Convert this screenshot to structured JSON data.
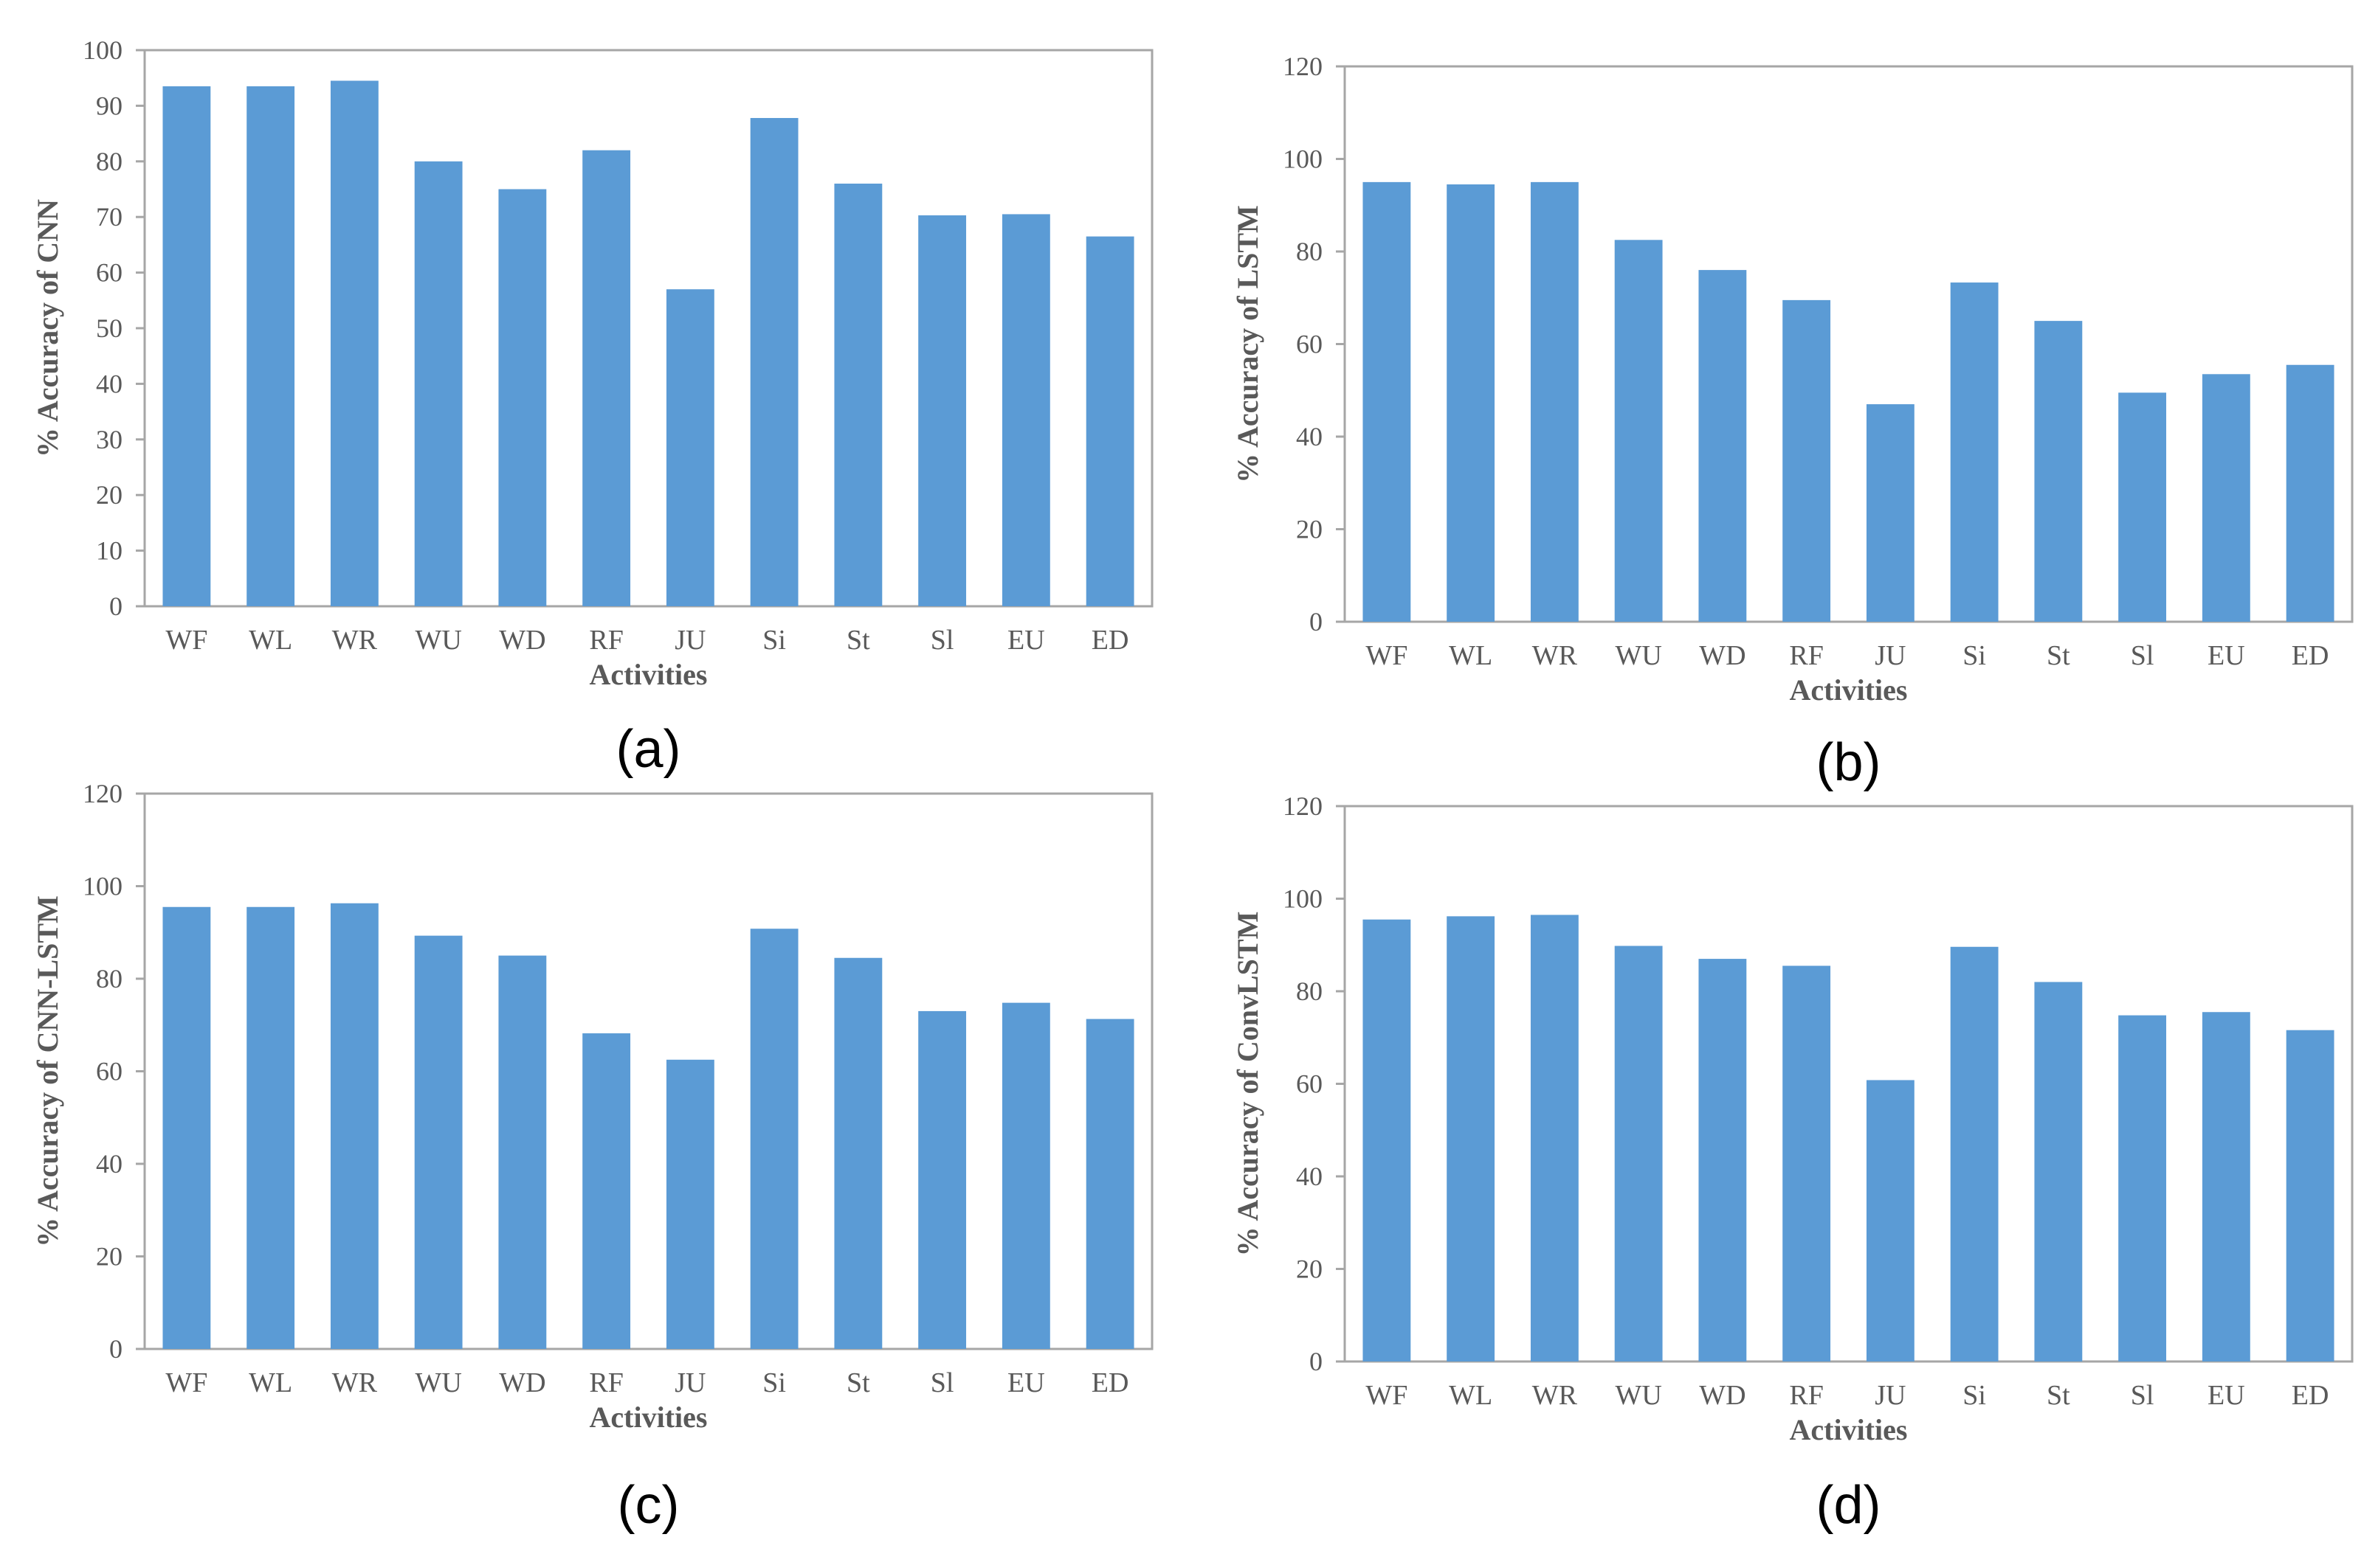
{
  "figure": {
    "bar_color": "#5b9bd5",
    "frame_color": "#a6a6a6",
    "text_color": "#595959"
  },
  "chart_data": [
    {
      "type": "bar",
      "panel_label": "(a)",
      "title": "",
      "xlabel": "Activities",
      "ylabel": "% Accuracy of CNN",
      "ylim": [
        0,
        100
      ],
      "ytick_step": 10,
      "grid": false,
      "categories": [
        "WF",
        "WL",
        "WR",
        "WU",
        "WD",
        "RF",
        "JU",
        "Si",
        "St",
        "Sl",
        "EU",
        "ED"
      ],
      "values": [
        93.5,
        93.5,
        94.5,
        80,
        75,
        82,
        57,
        87.8,
        76,
        70.3,
        70.5,
        66.5
      ]
    },
    {
      "type": "bar",
      "panel_label": "(b)",
      "title": "",
      "xlabel": "Activities",
      "ylabel": "% Accuracy of  LSTM",
      "ylim": [
        0,
        120
      ],
      "ytick_step": 20,
      "grid": false,
      "categories": [
        "WF",
        "WL",
        "WR",
        "WU",
        "WD",
        "RF",
        "JU",
        "Si",
        "St",
        "Sl",
        "EU",
        "ED"
      ],
      "values": [
        95,
        94.5,
        95,
        82.5,
        76,
        69.5,
        47,
        73.3,
        65,
        49.5,
        53.5,
        55.5
      ]
    },
    {
      "type": "bar",
      "panel_label": "(c)",
      "title": "",
      "xlabel": "Activities",
      "ylabel": "% Accuracy of CNN-LSTM",
      "ylim": [
        0,
        120
      ],
      "ytick_step": 20,
      "grid": false,
      "categories": [
        "WF",
        "WL",
        "WR",
        "WU",
        "WD",
        "RF",
        "JU",
        "Si",
        "St",
        "Sl",
        "EU",
        "ED"
      ],
      "values": [
        95.5,
        95.5,
        96.3,
        89.3,
        85,
        68.2,
        62.5,
        90.8,
        84.5,
        73,
        74.8,
        71.3
      ]
    },
    {
      "type": "bar",
      "panel_label": "(d)",
      "title": "",
      "xlabel": "Activities",
      "ylabel": "% Accuracy of ConvLSTM",
      "ylim": [
        0,
        120
      ],
      "ytick_step": 20,
      "grid": false,
      "categories": [
        "WF",
        "WL",
        "WR",
        "WU",
        "WD",
        "RF",
        "JU",
        "Si",
        "St",
        "Sl",
        "EU",
        "ED"
      ],
      "values": [
        95.5,
        96.2,
        96.5,
        89.8,
        87,
        85.5,
        60.8,
        89.6,
        82,
        74.8,
        75.5,
        71.6
      ]
    }
  ]
}
